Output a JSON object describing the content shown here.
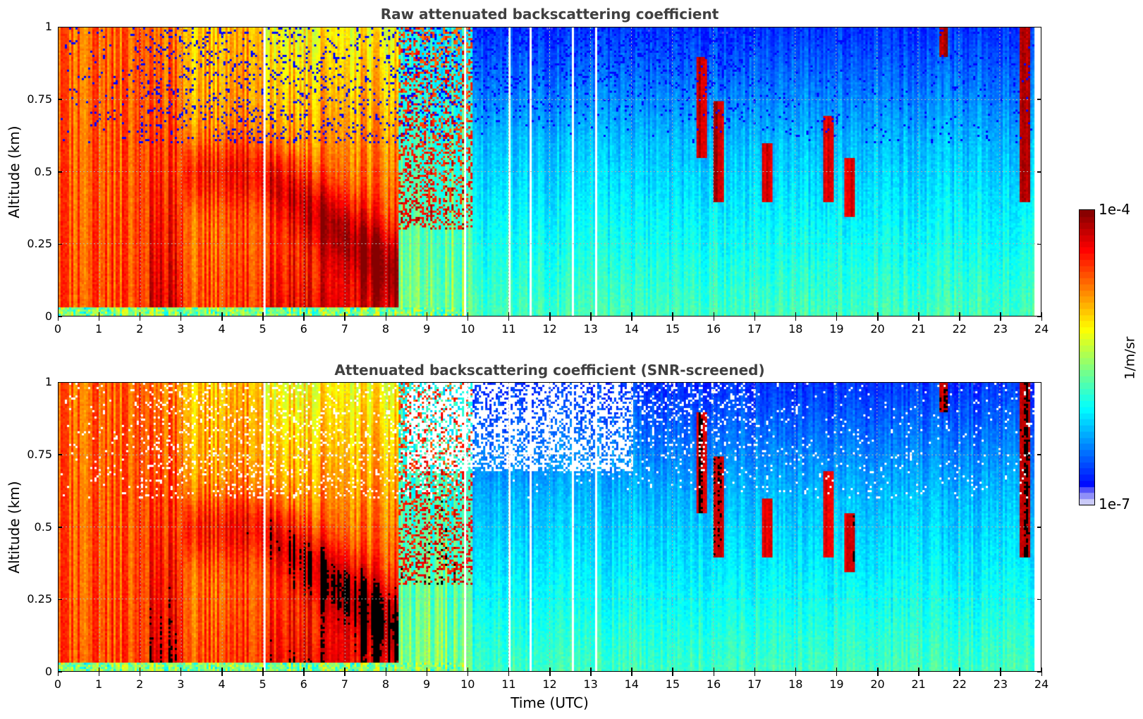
{
  "chart_data": [
    {
      "type": "heatmap",
      "title": "Raw attenuated backscattering coefficient",
      "xlabel": "",
      "ylabel": "Altitude (km)",
      "xlim": [
        0,
        24
      ],
      "ylim": [
        0,
        1
      ],
      "xticks": [
        "0",
        "1",
        "2",
        "3",
        "4",
        "5",
        "6",
        "7",
        "8",
        "9",
        "10",
        "11",
        "12",
        "13",
        "14",
        "15",
        "16",
        "17",
        "18",
        "19",
        "20",
        "21",
        "22",
        "23",
        "24"
      ],
      "yticks": [
        "0",
        "0.25",
        "0.5",
        "0.75",
        "1"
      ],
      "grid": true,
      "screened": false,
      "data_end_hour": 23.8,
      "gap_hours": [
        5.0,
        9.9,
        11.0,
        11.5,
        12.55,
        13.1
      ],
      "regimes": [
        {
          "from": 0,
          "to": 2.2,
          "description": "dense aerosol/fog, orange-yellow high values through column",
          "log_value_surface": -4.6,
          "log_value_top": -4.7
        },
        {
          "from": 2.2,
          "to": 3.0,
          "description": "very high values, dark red layer",
          "log_value_surface": -4.3,
          "log_value_top": -4.8
        },
        {
          "from": 3.0,
          "to": 5.0,
          "description": "yellow-orange with dark red layer near 0.4-0.6 km",
          "log_value_surface": -4.6,
          "log_value_top": -5.0
        },
        {
          "from": 5.0,
          "to": 8.3,
          "description": "red/dark red descending layer from 0.5 to 0.1 km",
          "log_value_surface": -4.3,
          "log_value_top": -5.2
        },
        {
          "from": 8.3,
          "to": 10.1,
          "description": "transition, cyan near surface, scattered red above",
          "log_value_surface": -5.6,
          "log_value_top": -6.0
        },
        {
          "from": 10.1,
          "to": 24,
          "description": "clear air, light blue near surface, deep blue aloft with noise",
          "log_value_surface": -5.8,
          "log_value_top": -6.5
        }
      ],
      "features": [
        {
          "hour": 15.7,
          "altitude_top": 0.9,
          "altitude_bottom": 0.55,
          "log_value": -4.2
        },
        {
          "hour": 16.1,
          "altitude_top": 0.75,
          "altitude_bottom": 0.4,
          "log_value": -4.2
        },
        {
          "hour": 17.3,
          "altitude_top": 0.6,
          "altitude_bottom": 0.4,
          "log_value": -4.3
        },
        {
          "hour": 18.8,
          "altitude_top": 0.7,
          "altitude_bottom": 0.4,
          "log_value": -4.3
        },
        {
          "hour": 19.3,
          "altitude_top": 0.55,
          "altitude_bottom": 0.35,
          "log_value": -4.3
        },
        {
          "hour": 21.6,
          "altitude_top": 1.0,
          "altitude_bottom": 0.9,
          "log_value": -4.2
        },
        {
          "hour": 23.6,
          "altitude_top": 1.0,
          "altitude_bottom": 0.4,
          "log_value": -4.2
        }
      ]
    },
    {
      "type": "heatmap",
      "title": "Attenuated backscattering coefficient (SNR-screened)",
      "xlabel": "Time (UTC)",
      "ylabel": "Altitude (km)",
      "xlim": [
        0,
        24
      ],
      "ylim": [
        0,
        1
      ],
      "xticks": [
        "0",
        "1",
        "2",
        "3",
        "4",
        "5",
        "6",
        "7",
        "8",
        "9",
        "10",
        "11",
        "12",
        "13",
        "14",
        "15",
        "16",
        "17",
        "18",
        "19",
        "20",
        "21",
        "22",
        "23",
        "24"
      ],
      "yticks": [
        "0",
        "0.25",
        "0.5",
        "0.75",
        "1"
      ],
      "grid": true,
      "screened": true,
      "note": "values above colour range shown black; low-SNR pixels removed (white)"
    }
  ],
  "colorbar": {
    "label": "1/m/sr",
    "max_label": "1e-4",
    "min_label": "1e-7",
    "range_log10": [
      -7,
      -4
    ],
    "colormap": "jet",
    "over_color": "#000000",
    "under_color": "#e8e8f8"
  }
}
